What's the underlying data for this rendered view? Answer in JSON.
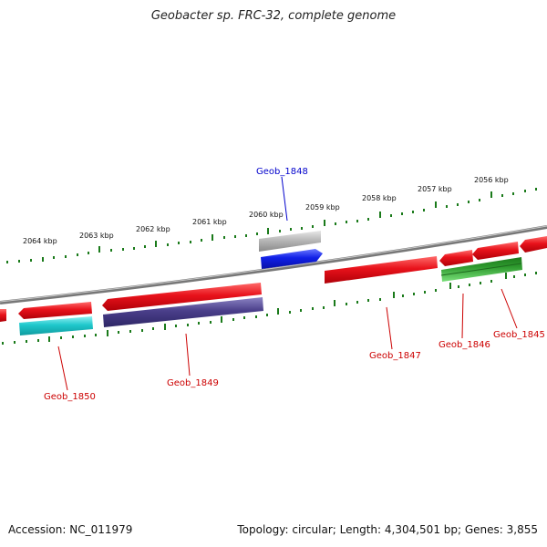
{
  "title": "Geobacter sp. FRC-32, complete genome",
  "footer": {
    "accession": "Accession: NC_011979",
    "summary": "Topology: circular; Length: 4,304,501 bp; Genes: 3,855"
  },
  "ruler_labels": [
    "2064 kbp",
    "2063 kbp",
    "2062 kbp",
    "2061 kbp",
    "2060 kbp",
    "2059 kbp",
    "2058 kbp",
    "2057 kbp",
    "2056 kbp"
  ],
  "gene_labels": {
    "geob_1848": "Geob_1848",
    "geob_1850": "Geob_1850",
    "geob_1849": "Geob_1849",
    "geob_1847": "Geob_1847",
    "geob_1846": "Geob_1846",
    "geob_1845": "Geob_1845"
  },
  "colors": {
    "forward_red": "#e8121b",
    "cyan": "#1fc8cc",
    "purple": "#4a3f8a",
    "blue": "#1020e6",
    "grey": "#b8b8b8",
    "green": "#2e9a2e",
    "label_red": "#cc0000",
    "label_blue": "#0000cc",
    "ruler_green": "#1a7a1a"
  }
}
